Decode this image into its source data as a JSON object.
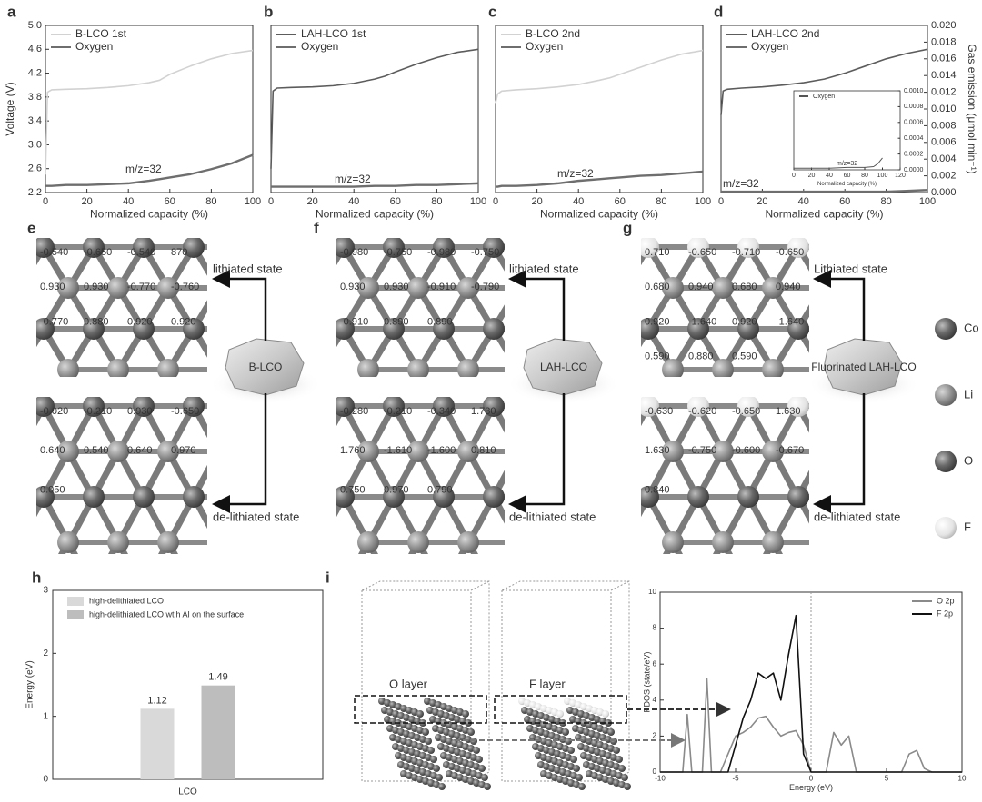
{
  "chart_data": [
    {
      "type": "line",
      "panel": "a",
      "xlabel": "Normalized capacity (%)",
      "ylabel": "Voltage (V)",
      "xlim": [
        0,
        100
      ],
      "xticks": [
        0,
        20,
        40,
        60,
        80,
        100
      ],
      "ylim": [
        2.2,
        5.0
      ],
      "yticks": [
        2.2,
        2.6,
        {
          "value": 3,
          "label": "3.0"
        },
        3.4,
        3.8,
        4.2,
        4.6,
        {
          "value": 5,
          "label": "5.0"
        }
      ],
      "y2lim": [
        0,
        0.02
      ],
      "legend": "upper left",
      "annotation": "m/z=32",
      "x": [
        0,
        1,
        3,
        10,
        20,
        30,
        40,
        50,
        55,
        60,
        70,
        80,
        90,
        100
      ],
      "series": [
        {
          "name": "B-LCO 1st",
          "color": "#d2d2d2",
          "values": [
            2.5,
            3.88,
            3.92,
            3.93,
            3.94,
            3.96,
            3.99,
            4.04,
            4.08,
            4.18,
            4.32,
            4.44,
            4.53,
            4.58
          ]
        },
        {
          "name": "Oxygen",
          "color": "#6e6e6e",
          "axis": "y2",
          "values": [
            0.0008,
            0.0008,
            0.0008,
            0.0009,
            0.0009,
            0.001,
            0.0011,
            0.0014,
            0.0016,
            0.0018,
            0.0022,
            0.0028,
            0.0035,
            0.0045
          ]
        }
      ]
    },
    {
      "type": "line",
      "panel": "b",
      "xlabel": "Normalized capacity (%)",
      "xlim": [
        0,
        100
      ],
      "xticks": [
        0,
        20,
        40,
        60,
        80,
        100
      ],
      "ylim": [
        2.2,
        5.0
      ],
      "y2lim": [
        0,
        0.02
      ],
      "legend": "upper left",
      "annotation": "m/z=32",
      "x": [
        0,
        1,
        3,
        10,
        20,
        30,
        40,
        50,
        55,
        60,
        70,
        80,
        90,
        100
      ],
      "series": [
        {
          "name": "LAH-LCO 1st",
          "color": "#5c5c5c",
          "values": [
            2.6,
            3.9,
            3.95,
            3.96,
            3.97,
            3.99,
            4.03,
            4.1,
            4.15,
            4.22,
            4.35,
            4.46,
            4.55,
            4.6
          ]
        },
        {
          "name": "Oxygen",
          "color": "#6e6e6e",
          "axis": "y2",
          "values": [
            0.0007,
            0.0007,
            0.0007,
            0.0007,
            0.0007,
            0.0007,
            0.0007,
            0.0008,
            0.0008,
            0.0008,
            0.0009,
            0.0009,
            0.001,
            0.0011
          ]
        }
      ]
    },
    {
      "type": "line",
      "panel": "c",
      "xlabel": "Normalized capacity (%)",
      "xlim": [
        0,
        100
      ],
      "xticks": [
        0,
        20,
        40,
        60,
        80,
        100
      ],
      "ylim": [
        2.2,
        5.0
      ],
      "y2lim": [
        0,
        0.02
      ],
      "legend": "upper left",
      "annotation": "m/z=32",
      "x": [
        0,
        1,
        3,
        10,
        20,
        30,
        40,
        50,
        55,
        60,
        70,
        80,
        90,
        100
      ],
      "series": [
        {
          "name": "B-LCO 2nd",
          "color": "#d2d2d2",
          "values": [
            3.7,
            3.85,
            3.9,
            3.92,
            3.94,
            3.97,
            4.01,
            4.08,
            4.12,
            4.18,
            4.3,
            4.42,
            4.52,
            4.58
          ]
        },
        {
          "name": "Oxygen",
          "color": "#6e6e6e",
          "axis": "y2",
          "values": [
            0.0007,
            0.0007,
            0.0008,
            0.0008,
            0.0009,
            0.0011,
            0.0014,
            0.0016,
            0.0017,
            0.0018,
            0.002,
            0.0021,
            0.0023,
            0.0025
          ]
        }
      ]
    },
    {
      "type": "line",
      "panel": "d",
      "xlabel": "Normalized capacity (%)",
      "y2label": "Gas emission (μmol min⁻¹)",
      "xlim": [
        0,
        100
      ],
      "xticks": [
        0,
        20,
        40,
        60,
        80,
        100
      ],
      "ylim": [
        2.2,
        5.0
      ],
      "y2lim": [
        0,
        0.02
      ],
      "y2ticks": [
        {
          "value": 0,
          "label": "0.000"
        },
        {
          "value": 0.002,
          "label": "0.002"
        },
        {
          "value": 0.004,
          "label": "0.004"
        },
        {
          "value": 0.006,
          "label": "0.006"
        },
        {
          "value": 0.008,
          "label": "0.008"
        },
        {
          "value": 0.01,
          "label": "0.010"
        },
        {
          "value": 0.012,
          "label": "0.012"
        },
        {
          "value": 0.014,
          "label": "0.014"
        },
        {
          "value": 0.016,
          "label": "0.016"
        },
        {
          "value": 0.018,
          "label": "0.018"
        },
        {
          "value": 0.02,
          "label": "0.020"
        }
      ],
      "legend": "upper left",
      "annotation": "m/z=32",
      "x": [
        0,
        1,
        3,
        10,
        20,
        30,
        40,
        50,
        55,
        60,
        70,
        80,
        90,
        100
      ],
      "series": [
        {
          "name": "LAH-LCO 2nd",
          "color": "#5c5c5c",
          "values": [
            3.5,
            3.9,
            3.93,
            3.95,
            3.97,
            4.0,
            4.04,
            4.1,
            4.15,
            4.2,
            4.32,
            4.44,
            4.53,
            4.6
          ]
        },
        {
          "name": "Oxygen",
          "color": "#6e6e6e",
          "axis": "y2",
          "values": [
            0.0001,
            0.0001,
            0.0001,
            0.0001,
            0.0001,
            0.0001,
            0.0001,
            0.0001,
            0.0001,
            0.0001,
            0.0001,
            0.0001,
            0.0002,
            0.0003
          ]
        }
      ]
    },
    {
      "type": "line",
      "xlabel": "Normalized capacity (%)",
      "xlim": [
        0,
        120
      ],
      "xticks": [
        0,
        20,
        40,
        60,
        80,
        100,
        120
      ],
      "ylim": [
        0,
        0.001
      ],
      "y2lim": [
        0,
        0.001
      ],
      "y2ticks": [
        {
          "value": 0,
          "label": "0.0000"
        },
        {
          "value": 0.0002,
          "label": "0.0002"
        },
        {
          "value": 0.0004,
          "label": "0.0004"
        },
        {
          "value": 0.0006,
          "label": "0.0006"
        },
        {
          "value": 0.0008,
          "label": "0.0008"
        },
        {
          "value": 0.001,
          "label": "0.0010"
        }
      ],
      "legend": "upper left",
      "annotation": "m/z=32",
      "x": [
        0,
        20,
        40,
        60,
        80,
        90,
        95,
        100
      ],
      "series": [
        {
          "name": "Oxygen",
          "color": "#555555",
          "axis": "y2",
          "values": [
            2e-05,
            2e-05,
            2e-05,
            3e-05,
            3e-05,
            4e-05,
            8e-05,
            0.00015
          ]
        }
      ]
    },
    {
      "type": "bar",
      "panel": "h",
      "ylabel": "Energy (eV)",
      "categories": [
        "LCO"
      ],
      "ylim": [
        0,
        3
      ],
      "yticks": [
        0,
        1,
        2,
        3
      ],
      "legend": "upper left",
      "series": [
        {
          "name": "high-delithiated LCO",
          "color": "#d9d9d9",
          "values": [
            1.12
          ]
        },
        {
          "name": "high-delithiated LCO wtih Al on the surface",
          "color": "#bdbdbd",
          "values": [
            1.49
          ]
        }
      ]
    },
    {
      "type": "line",
      "panel": "i",
      "xlabel": "Energy (eV)",
      "ylabel": "PDOS (state/eV)",
      "xlim": [
        -10,
        10
      ],
      "xticks": [
        -10,
        -5,
        0,
        5,
        10
      ],
      "ylim": [
        0,
        10
      ],
      "yticks": [
        0,
        2,
        4,
        6,
        8,
        10
      ],
      "legend": "upper right",
      "x": [
        -10,
        -8.5,
        -8.2,
        -7.9,
        -7.2,
        -6.9,
        -6.6,
        -6,
        -5.5,
        -5,
        -4.5,
        -4,
        -3.5,
        -3,
        -2.5,
        -2,
        -1.5,
        -1,
        -0.5,
        0,
        0.5,
        1,
        1.5,
        2,
        2.5,
        3,
        4,
        5,
        6,
        6.5,
        7,
        7.5,
        8,
        10
      ],
      "series": [
        {
          "name": "O 2p",
          "color": "#8a8a8a",
          "values": [
            0,
            0,
            3.2,
            0,
            0,
            5.2,
            0,
            0,
            1,
            2,
            2.2,
            2.5,
            3,
            3.1,
            2.5,
            2,
            2.2,
            2.3,
            1.5,
            0,
            0,
            0,
            2.2,
            1.5,
            2,
            0,
            0,
            0,
            0,
            1,
            1.2,
            0.2,
            0,
            0
          ]
        },
        {
          "name": "F 2p",
          "color": "#111111",
          "values": [
            0,
            0,
            0,
            0,
            0,
            0,
            0,
            0,
            0,
            1.5,
            3,
            4,
            5.5,
            5.2,
            5.5,
            4,
            6.5,
            8.7,
            1,
            0,
            0,
            0,
            0,
            0,
            0,
            0,
            0,
            0,
            0,
            0,
            0,
            0,
            0,
            0
          ]
        }
      ]
    }
  ],
  "structures": [
    {
      "panel": "e",
      "particle": "B-LCO",
      "top_state": "lithiated state",
      "bottom_state": "de-lithiated state",
      "top_labels": [
        "-0.540",
        "-0.650",
        "-0.540",
        "870",
        "0.930",
        "0.930",
        "-0.770",
        "-0.760",
        "-0.770",
        "0.880",
        "0.920",
        "0.920"
      ],
      "bottom_labels": [
        "-0.020",
        "-0.210",
        "0.930",
        "-0.650",
        "0.640",
        "0.540",
        "0.640",
        "0.970",
        "0.050"
      ]
    },
    {
      "panel": "f",
      "particle": "LAH-LCO",
      "top_state": "lithiated state",
      "bottom_state": "de-lithiated state",
      "top_labels": [
        "-0.980",
        "-0.750",
        "-0.980",
        "-0.750",
        "0.930",
        "0.930",
        "-0.910",
        "-0.790",
        "-0.910",
        "0.890",
        "0.890"
      ],
      "bottom_labels": [
        "-0.280",
        "-0.210",
        "-0.340",
        "1.730",
        "1.760",
        "-1.610",
        "-1.600",
        "0.810",
        "0.750",
        "0.970",
        "0.790"
      ]
    },
    {
      "panel": "g",
      "particle": "Fluorinated LAH-LCO",
      "top_state": "Lithiated state",
      "bottom_state": "de-lithiated state",
      "top_labels": [
        "0.710",
        "-0.650",
        "-0.710",
        "-0.650",
        "0.680",
        "0.940",
        "0.680",
        "0.940",
        "0.920",
        "-1.640",
        "0.920",
        "-1.640",
        "0.590",
        "0.880",
        "0.590"
      ],
      "bottom_labels": [
        "-0.630",
        "-0.620",
        "-0.650",
        "1.630",
        "1.630",
        "-0.750",
        "-0.600",
        "-0.670",
        "0.840"
      ]
    }
  ],
  "atom_legend": [
    "Co",
    "Li",
    "O",
    "F"
  ],
  "layer_labels": [
    "O layer",
    "F layer"
  ]
}
